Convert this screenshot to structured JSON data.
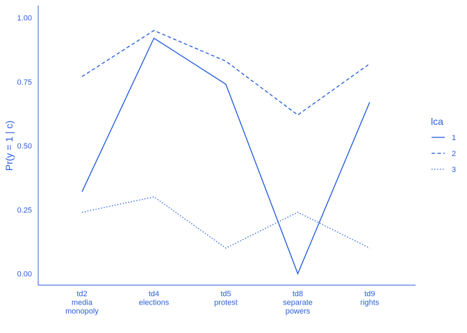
{
  "chart_data": {
    "type": "line",
    "title": "",
    "xlabel": "",
    "ylabel": "Pr(y = 1 | c)",
    "ylim": [
      0,
      1
    ],
    "yticks": [
      "0.00",
      "0.25",
      "0.50",
      "0.75",
      "1.00"
    ],
    "ytick_values": [
      0,
      0.25,
      0.5,
      0.75,
      1
    ],
    "categories": [
      [
        "td2",
        "media",
        "monopoly"
      ],
      [
        "td4",
        "elections"
      ],
      [
        "td5",
        "protest"
      ],
      [
        "td8",
        "separate",
        "powers"
      ],
      [
        "td9",
        "rights"
      ]
    ],
    "legend": {
      "title": "lca",
      "position": "right"
    },
    "grid": false,
    "series": [
      {
        "name": "1",
        "dash": "solid",
        "values": [
          0.32,
          0.92,
          0.74,
          0.0,
          0.67
        ]
      },
      {
        "name": "2",
        "dash": "dashed",
        "values": [
          0.77,
          0.95,
          0.83,
          0.62,
          0.82
        ]
      },
      {
        "name": "3",
        "dash": "dotted",
        "values": [
          0.24,
          0.3,
          0.1,
          0.24,
          0.1
        ]
      }
    ],
    "color": "#1a56db"
  }
}
